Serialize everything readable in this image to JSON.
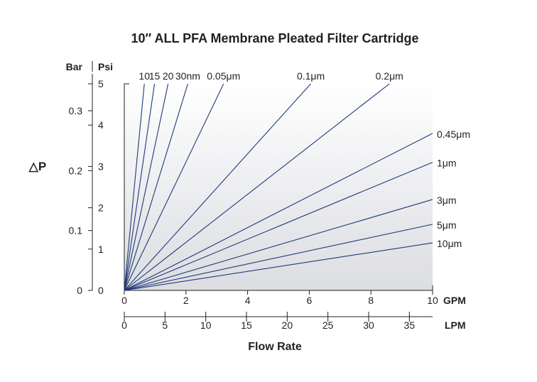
{
  "chart_data": {
    "type": "line",
    "title": "10″ ALL PFA Membrane Pleated Filter Cartridge",
    "xlabel": "Flow Rate",
    "ylabel": "△P",
    "x_units_primary": "GPM",
    "x_units_secondary": "LPM",
    "y_units_left": "Bar",
    "y_units_right": "Psi",
    "xlim_gpm": [
      0,
      10
    ],
    "xlim_lpm": [
      0,
      37.85
    ],
    "ylim_psi": [
      0,
      5
    ],
    "ylim_bar": [
      0,
      0.345
    ],
    "gpm_ticks": [
      "0",
      "2",
      "4",
      "6",
      "8",
      "10"
    ],
    "lpm_ticks": [
      "0",
      "5",
      "10",
      "15",
      "20",
      "25",
      "30",
      "35"
    ],
    "psi_ticks": [
      "0",
      "1",
      "2",
      "3",
      "4",
      "5"
    ],
    "bar_ticks": [
      "0",
      "0.1",
      "0.2",
      "0.3"
    ],
    "series_color": "#1f3a78",
    "grid": false,
    "series": [
      {
        "name": "10",
        "x": [
          0,
          0.65
        ],
        "y": [
          0,
          5
        ]
      },
      {
        "name": "15",
        "x": [
          0,
          0.98
        ],
        "y": [
          0,
          5
        ]
      },
      {
        "name": "20",
        "x": [
          0,
          1.42
        ],
        "y": [
          0,
          5
        ]
      },
      {
        "name": "30nm",
        "x": [
          0,
          2.06
        ],
        "y": [
          0,
          5
        ]
      },
      {
        "name": "0.05μm",
        "x": [
          0,
          3.22
        ],
        "y": [
          0,
          5
        ]
      },
      {
        "name": "0.1μm",
        "x": [
          0,
          6.05
        ],
        "y": [
          0,
          5
        ]
      },
      {
        "name": "0.2μm",
        "x": [
          0,
          8.6
        ],
        "y": [
          0,
          5
        ]
      },
      {
        "name": "0.45μm",
        "x": [
          0,
          10
        ],
        "y": [
          0,
          3.8
        ]
      },
      {
        "name": "1μm",
        "x": [
          0,
          10
        ],
        "y": [
          0,
          3.1
        ]
      },
      {
        "name": "3μm",
        "x": [
          0,
          10
        ],
        "y": [
          0,
          2.2
        ]
      },
      {
        "name": "5μm",
        "x": [
          0,
          10
        ],
        "y": [
          0,
          1.6
        ]
      },
      {
        "name": "10μm",
        "x": [
          0,
          10
        ],
        "y": [
          0,
          1.15
        ]
      }
    ]
  }
}
